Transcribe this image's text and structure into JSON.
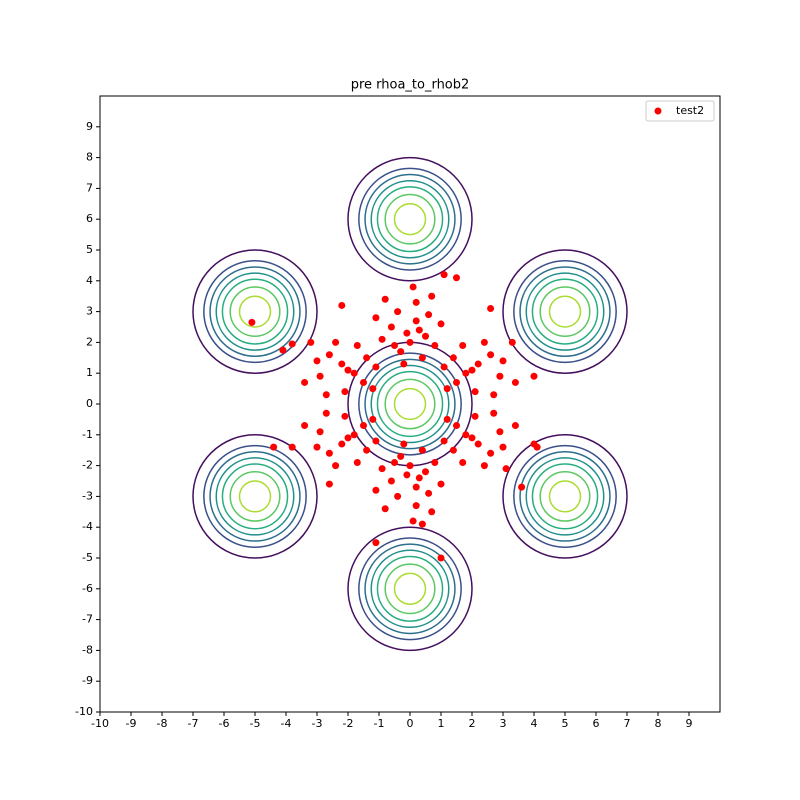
{
  "chart_data": {
    "type": "scatter",
    "title": "pre rhoa_to_rhob2",
    "xlim": [
      -10,
      10
    ],
    "ylim": [
      -10,
      10
    ],
    "xticks": [
      -10,
      -9,
      -8,
      -7,
      -6,
      -5,
      -4,
      -3,
      -2,
      -1,
      0,
      1,
      2,
      3,
      4,
      5,
      6,
      7,
      8,
      9
    ],
    "yticks": [
      -10,
      -9,
      -8,
      -7,
      -6,
      -5,
      -4,
      -3,
      -2,
      -1,
      0,
      1,
      2,
      3,
      4,
      5,
      6,
      7,
      8,
      9
    ],
    "legend": "upper right",
    "contours": {
      "centers": [
        [
          0,
          0
        ],
        [
          0,
          6
        ],
        [
          0,
          -6
        ],
        [
          5,
          3
        ],
        [
          5,
          -3
        ],
        [
          -5,
          3
        ],
        [
          -5,
          -3
        ]
      ],
      "radii": [
        2.0,
        1.65,
        1.45,
        1.25,
        1.05,
        0.8,
        0.5
      ],
      "colors": [
        "#440f5e",
        "#3b4f8a",
        "#2e6f8e",
        "#21908d",
        "#27ad81",
        "#5cc863",
        "#aadc32"
      ]
    },
    "series": [
      {
        "name": "test2",
        "color": "#ff0000",
        "x": [
          0,
          0.3,
          -0.3,
          0.6,
          -0.6,
          0.2,
          -0.2,
          0.8,
          -0.9,
          0.4,
          -0.4,
          1.0,
          -1.1,
          0.1,
          0.5,
          -0.5,
          0.7,
          -0.8,
          0.2,
          -0.1,
          0,
          0.3,
          -0.3,
          0.6,
          -0.6,
          0.2,
          -0.2,
          0.8,
          -0.9,
          0.4,
          -0.4,
          1.0,
          -1.1,
          0.1,
          0.5,
          -0.5,
          0.7,
          -0.8,
          0.2,
          -0.1,
          1.8,
          2.2,
          1.5,
          2.6,
          1.4,
          2.9,
          1.2,
          2.1,
          2.4,
          1.7,
          3.0,
          2.0,
          1.1,
          2.7,
          3.4,
          -1.8,
          -2.2,
          -1.5,
          -2.6,
          -1.4,
          -2.9,
          -1.2,
          -2.1,
          -2.4,
          -1.7,
          -3.0,
          -2.0,
          -1.1,
          -2.7,
          -3.4,
          1.8,
          2.2,
          1.5,
          2.6,
          1.4,
          2.9,
          1.2,
          2.1,
          2.4,
          1.7,
          3.0,
          2.0,
          1.1,
          2.7,
          3.4,
          -1.8,
          -2.2,
          -1.5,
          -2.6,
          -1.4,
          -2.9,
          -1.2,
          -2.1,
          -2.4,
          -1.7,
          -3.0,
          -2.0,
          -1.1,
          -2.7,
          -3.4,
          -5.1,
          -4.1,
          -3.8,
          -3.2,
          -3.8,
          -4.4,
          -1.1,
          1.0,
          3.6,
          3.1,
          4.1,
          4.0,
          4.0,
          3.3,
          1.1,
          1.5,
          2.6,
          -2.2,
          -2.6,
          0.4
        ],
        "values": [
          2,
          2.4,
          1.7,
          2.9,
          2.5,
          3.3,
          1.3,
          1.9,
          2.1,
          1.5,
          3.0,
          2.6,
          2.8,
          3.8,
          2.2,
          1.9,
          3.5,
          3.4,
          2.7,
          2.3,
          -2,
          -2.4,
          -1.7,
          -2.9,
          -2.5,
          -3.3,
          -1.3,
          -1.9,
          -2.1,
          -1.5,
          -3.0,
          -2.6,
          -2.8,
          -3.8,
          -2.2,
          -1.9,
          -3.5,
          -3.4,
          -2.7,
          -2.3,
          1,
          1.3,
          0.7,
          1.6,
          1.5,
          0.9,
          0.5,
          0.4,
          2.0,
          1.9,
          1.4,
          1.1,
          1.2,
          0.3,
          0.7,
          1,
          1.3,
          0.7,
          1.6,
          1.5,
          0.9,
          0.5,
          0.4,
          2.0,
          1.9,
          1.4,
          1.1,
          1.2,
          0.3,
          0.7,
          -1,
          -1.3,
          -0.7,
          -1.6,
          -1.5,
          -0.9,
          -0.5,
          -0.4,
          -2.0,
          -1.9,
          -1.4,
          -1.1,
          -1.2,
          -0.3,
          -0.7,
          -1,
          -1.3,
          -0.7,
          -1.6,
          -1.5,
          -0.9,
          -0.5,
          -0.4,
          -2.0,
          -1.9,
          -1.4,
          -1.1,
          -1.2,
          -0.3,
          -0.7,
          2.65,
          1.75,
          1.95,
          2.0,
          -1.4,
          -1.4,
          -4.5,
          -5.0,
          -2.7,
          -2.1,
          -1.4,
          -1.3,
          0.9,
          2.0,
          4.2,
          4.1,
          3.1,
          3.2,
          -2.6,
          -3.9
        ]
      }
    ]
  }
}
